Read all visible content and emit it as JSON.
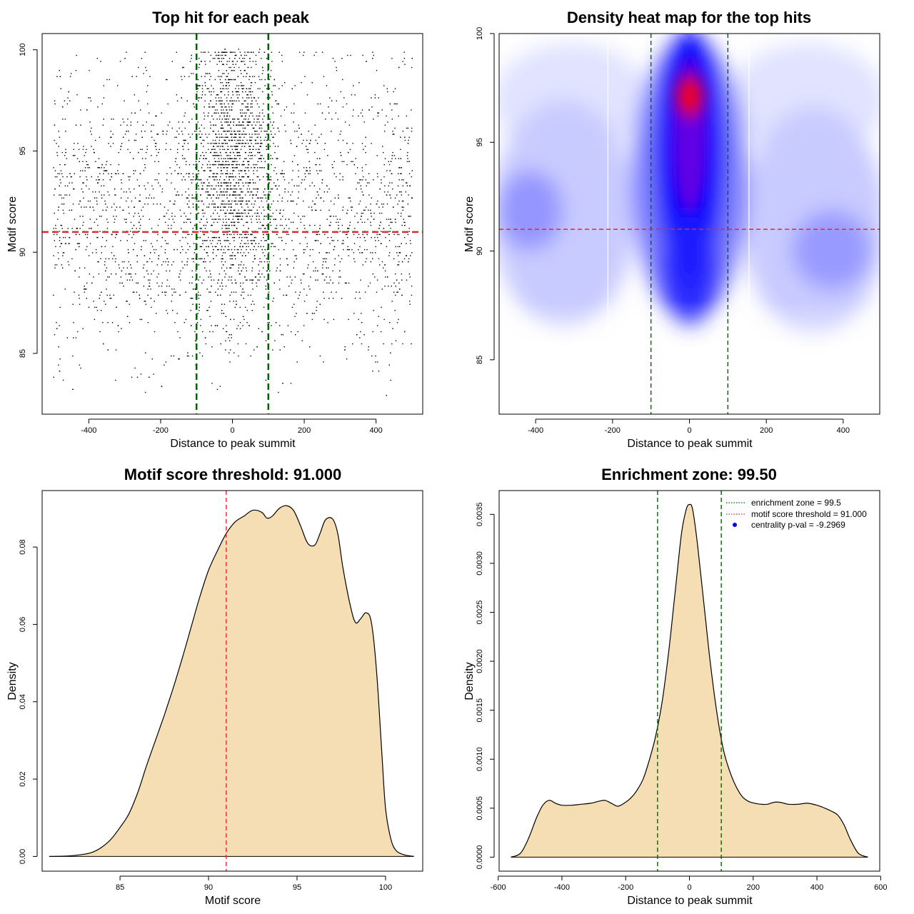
{
  "figure_colors": {
    "points": "#000000",
    "threshold": "#e8272b",
    "zone": "#006400",
    "density_fill": "#f5deb3",
    "heat_low": "#ffffff",
    "heat_mid": "#0000ff",
    "heat_high": "#ff0000",
    "legend_dot": "#0000ff"
  },
  "chart_data": [
    {
      "id": "scatter",
      "type": "scatter",
      "title": "Top hit for each peak",
      "xlabel": "Distance to peak summit",
      "ylabel": "Motif score",
      "xlim": [
        -530,
        530
      ],
      "ylim": [
        82.0,
        100.8
      ],
      "xticks": [
        -400,
        -200,
        0,
        200,
        400
      ],
      "yticks": [
        85,
        90,
        95,
        100
      ],
      "zone_lines": [
        -100,
        100
      ],
      "threshold": 91.0,
      "n_points": 4200,
      "point_model": "uniform background from -500 to 500 plus concentration within +/-100 of summit at high scores; scores discretized on a 0.15 grid between 83 and 100"
    },
    {
      "id": "heatmap",
      "type": "heatmap",
      "title": "Density heat map for the top hits",
      "xlabel": "Distance to peak summit",
      "ylabel": "Motif score",
      "xlim": [
        -495,
        495
      ],
      "ylim": [
        82.5,
        100.0
      ],
      "xticks": [
        -400,
        -200,
        0,
        200,
        400
      ],
      "yticks": [
        85,
        90,
        95,
        100
      ],
      "zone_lines": [
        -100,
        100
      ],
      "white_lines": [
        -212,
        155
      ],
      "threshold": 91.0,
      "peak": {
        "x": 5,
        "y": 97.2
      },
      "scale": "white (low) - blue - red (high)"
    },
    {
      "id": "score-density",
      "type": "area",
      "title": "Motif score threshold: 91.000",
      "xlabel": "Motif score",
      "ylabel": "Density",
      "xlim": [
        80.6,
        102.1
      ],
      "ylim": [
        -0.0038,
        0.0946
      ],
      "xticks": [
        85,
        90,
        95,
        100
      ],
      "yticks": [
        0.0,
        0.02,
        0.04,
        0.06,
        0.08
      ],
      "ytick_labels": [
        "0.00",
        "0.02",
        "0.04",
        "0.06",
        "0.08"
      ],
      "threshold": 91.0,
      "x": [
        81.0,
        82.0,
        83.0,
        83.5,
        84.0,
        84.5,
        85.0,
        85.5,
        86.0,
        86.5,
        87.0,
        87.5,
        88.0,
        88.5,
        89.0,
        89.5,
        90.0,
        90.5,
        91.0,
        91.5,
        92.0,
        92.5,
        93.0,
        93.3,
        93.6,
        94.0,
        94.4,
        94.8,
        95.2,
        95.6,
        96.0,
        96.3,
        96.6,
        97.0,
        97.3,
        97.6,
        98.0,
        98.3,
        98.6,
        98.9,
        99.2,
        99.5,
        99.8,
        100.0,
        100.3,
        100.6,
        101.0,
        101.3,
        101.6
      ],
      "y": [
        0.0,
        0.0001,
        0.0006,
        0.0012,
        0.0025,
        0.0045,
        0.0075,
        0.011,
        0.0165,
        0.0235,
        0.03,
        0.0365,
        0.0435,
        0.051,
        0.059,
        0.067,
        0.074,
        0.079,
        0.0835,
        0.0865,
        0.088,
        0.0895,
        0.089,
        0.0875,
        0.088,
        0.09,
        0.0907,
        0.0895,
        0.0855,
        0.081,
        0.0805,
        0.0835,
        0.087,
        0.0873,
        0.0835,
        0.0745,
        0.065,
        0.0605,
        0.0615,
        0.063,
        0.0605,
        0.0475,
        0.026,
        0.0125,
        0.0045,
        0.0015,
        0.0005,
        0.0002,
        0.0
      ]
    },
    {
      "id": "distance-density",
      "type": "area",
      "title": "Enrichment zone: 99.50",
      "xlabel": "Distance to peak summit",
      "ylabel": "Density",
      "xlim": [
        -597,
        597
      ],
      "ylim": [
        -0.000143,
        0.003743
      ],
      "xticks": [
        -600,
        -400,
        -200,
        0,
        200,
        400,
        600
      ],
      "yticks": [
        0.0,
        0.0005,
        0.001,
        0.0015,
        0.002,
        0.0025,
        0.003,
        0.0035
      ],
      "ytick_labels": [
        "0.0000",
        "0.0005",
        "0.0010",
        "0.0015",
        "0.0020",
        "0.0025",
        "0.0030",
        "0.0035"
      ],
      "zone_lines": [
        -100,
        100
      ],
      "x": [
        -560,
        -530,
        -505,
        -480,
        -460,
        -440,
        -420,
        -400,
        -370,
        -340,
        -310,
        -285,
        -265,
        -245,
        -225,
        -205,
        -185,
        -165,
        -145,
        -125,
        -105,
        -85,
        -65,
        -45,
        -25,
        -10,
        0,
        10,
        25,
        45,
        65,
        85,
        105,
        125,
        145,
        165,
        185,
        205,
        225,
        245,
        265,
        285,
        310,
        340,
        370,
        400,
        425,
        445,
        465,
        485,
        505,
        530,
        560
      ],
      "y": [
        0.0,
        4e-05,
        0.00019,
        0.0004,
        0.00053,
        0.00058,
        0.00055,
        0.00053,
        0.00053,
        0.00054,
        0.00055,
        0.00057,
        0.00058,
        0.00055,
        0.00052,
        0.00055,
        0.0006,
        0.00068,
        0.0008,
        0.001,
        0.00125,
        0.0016,
        0.0021,
        0.0027,
        0.0033,
        0.00355,
        0.0036,
        0.00355,
        0.0032,
        0.0026,
        0.002,
        0.0015,
        0.00112,
        0.00089,
        0.00073,
        0.00062,
        0.00057,
        0.00055,
        0.00054,
        0.00054,
        0.00056,
        0.00056,
        0.00054,
        0.00054,
        0.00055,
        0.00053,
        0.0005,
        0.00047,
        0.00043,
        0.00033,
        0.00018,
        4e-05,
        0.0
      ],
      "legend": [
        {
          "label": "enrichment zone = 99.5",
          "style": "dotted",
          "color": "#006400"
        },
        {
          "label": "motif score threshold = 91.000",
          "style": "dotted",
          "color": "#e8272b"
        },
        {
          "label": "centrality p-val = -9.2969",
          "style": "dot",
          "color": "#0000ff"
        }
      ]
    }
  ]
}
